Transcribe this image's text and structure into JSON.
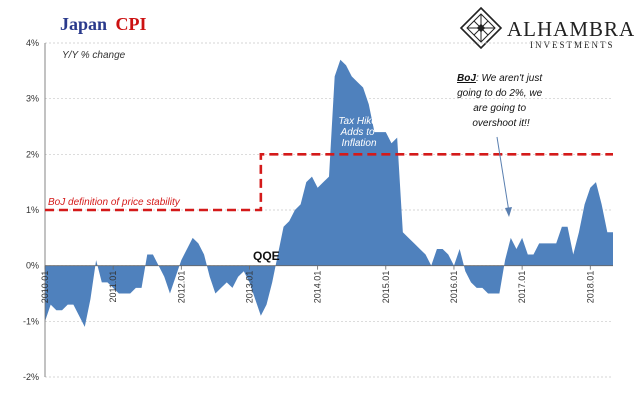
{
  "header": {
    "title_part1": "Japan",
    "title_part2": "CPI",
    "title_color1": "#2a3a8c",
    "title_color2": "#cc1111",
    "logo_name": "ALHAMBRA",
    "logo_sub": "INVESTMENTS",
    "logo_icon": "diamond-lattice-icon"
  },
  "chart_data": {
    "type": "area",
    "ylabel": "Y/Y % change",
    "ylim": [
      -2,
      4
    ],
    "yticks": [
      -2,
      -1,
      0,
      1,
      2,
      3,
      4
    ],
    "ytick_labels": [
      "-2%",
      "-1%",
      "0%",
      "1%",
      "2%",
      "3%",
      "4%"
    ],
    "xlim": [
      "2010.01",
      "2018.05"
    ],
    "xtick_labels": [
      "2010.01",
      "2011.01",
      "2012.01",
      "2013.01",
      "2014.01",
      "2015.01",
      "2016.01",
      "2017.01",
      "2018.01"
    ],
    "grid": "horizontal dashed",
    "area_color": "#4f81bd",
    "series": [
      {
        "x": [
          "2010.01",
          "2010.02",
          "2010.03",
          "2010.04",
          "2010.05",
          "2010.06",
          "2010.07",
          "2010.08",
          "2010.09",
          "2010.10",
          "2010.11",
          "2010.12",
          "2011.01",
          "2011.02",
          "2011.03",
          "2011.04",
          "2011.05",
          "2011.06",
          "2011.07",
          "2011.08",
          "2011.09",
          "2011.10",
          "2011.11",
          "2011.12",
          "2012.01",
          "2012.02",
          "2012.03",
          "2012.04",
          "2012.05",
          "2012.06",
          "2012.07",
          "2012.08",
          "2012.09",
          "2012.10",
          "2012.11",
          "2012.12",
          "2013.01",
          "2013.02",
          "2013.03",
          "2013.04",
          "2013.05",
          "2013.06",
          "2013.07",
          "2013.08",
          "2013.09",
          "2013.10",
          "2013.11",
          "2013.12",
          "2014.01",
          "2014.02",
          "2014.03",
          "2014.04",
          "2014.05",
          "2014.06",
          "2014.07",
          "2014.08",
          "2014.09",
          "2014.10",
          "2014.11",
          "2014.12",
          "2015.01",
          "2015.02",
          "2015.03",
          "2015.04",
          "2015.05",
          "2015.06",
          "2015.07",
          "2015.08",
          "2015.09",
          "2015.10",
          "2015.11",
          "2015.12",
          "2016.01",
          "2016.02",
          "2016.03",
          "2016.04",
          "2016.05",
          "2016.06",
          "2016.07",
          "2016.08",
          "2016.09",
          "2016.10",
          "2016.11",
          "2016.12",
          "2017.01",
          "2017.02",
          "2017.03",
          "2017.04",
          "2017.05",
          "2017.06",
          "2017.07",
          "2017.08",
          "2017.09",
          "2017.10",
          "2017.11",
          "2017.12",
          "2018.01",
          "2018.02",
          "2018.03",
          "2018.04",
          "2018.05"
        ],
        "values": [
          -1.0,
          -0.7,
          -0.8,
          -0.8,
          -0.7,
          -0.7,
          -0.9,
          -1.1,
          -0.6,
          0.1,
          -0.3,
          -0.3,
          -0.4,
          -0.5,
          -0.5,
          -0.5,
          -0.4,
          -0.4,
          0.2,
          0.2,
          0.0,
          -0.2,
          -0.5,
          -0.2,
          0.1,
          0.3,
          0.5,
          0.4,
          0.2,
          -0.2,
          -0.5,
          -0.4,
          -0.3,
          -0.4,
          -0.2,
          -0.1,
          -0.3,
          -0.6,
          -0.9,
          -0.7,
          -0.3,
          0.2,
          0.7,
          0.8,
          1.0,
          1.1,
          1.5,
          1.6,
          1.4,
          1.5,
          1.6,
          3.4,
          3.7,
          3.6,
          3.4,
          3.3,
          3.2,
          2.9,
          2.4,
          2.4,
          2.4,
          2.2,
          2.3,
          0.6,
          0.5,
          0.4,
          0.3,
          0.2,
          0.0,
          0.3,
          0.3,
          0.2,
          0.0,
          0.3,
          -0.1,
          -0.3,
          -0.4,
          -0.4,
          -0.5,
          -0.5,
          -0.5,
          0.1,
          0.5,
          0.3,
          0.5,
          0.2,
          0.2,
          0.4,
          0.4,
          0.4,
          0.4,
          0.7,
          0.7,
          0.2,
          0.6,
          1.1,
          1.4,
          1.5,
          1.1,
          0.6,
          0.6
        ]
      }
    ],
    "reference_line": {
      "label": "BoJ definition of price stability",
      "color": "#d41a1a",
      "before_value": 1.0,
      "after_value": 2.0,
      "step_at": "2013.03"
    },
    "annotations": {
      "qqe": "QQE",
      "tax_hike": [
        "Tax Hike",
        "Adds to",
        "Inflation"
      ],
      "boj_quote_bold": "BoJ",
      "boj_quote_rest": ": We aren't just",
      "boj_quote_lines": [
        "going to do 2%, we",
        "are going to",
        "overshoot it!!"
      ]
    }
  }
}
